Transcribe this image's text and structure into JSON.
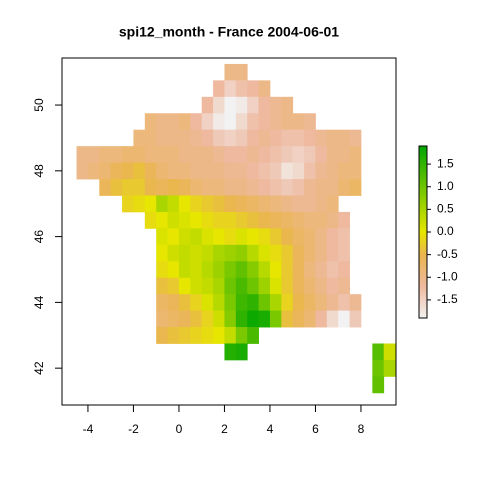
{
  "chart_data": {
    "type": "raster",
    "title": "spi12_month - France 2004-06-01",
    "x": [
      -4.75,
      -4.25,
      -3.75,
      -3.25,
      -2.75,
      -2.25,
      -1.75,
      -1.25,
      -0.75,
      -0.25,
      0.25,
      0.75,
      1.25,
      1.75,
      2.25,
      2.75,
      3.25,
      3.75,
      4.25,
      4.75,
      5.25,
      5.75,
      6.25,
      6.75,
      7.25,
      7.75,
      8.25,
      8.75,
      9.25
    ],
    "y": [
      51.0,
      50.5,
      50.0,
      49.5,
      49.0,
      48.5,
      48.0,
      47.5,
      47.0,
      46.5,
      46.0,
      45.5,
      45.0,
      44.5,
      44.0,
      43.5,
      43.0,
      42.5,
      42.0,
      41.5
    ],
    "values": [
      [
        null,
        null,
        null,
        null,
        null,
        null,
        null,
        null,
        null,
        null,
        null,
        null,
        null,
        null,
        -1.0,
        -1.0,
        null,
        null,
        null,
        null,
        null,
        null,
        null,
        null,
        null,
        null,
        null,
        null,
        null
      ],
      [
        null,
        null,
        null,
        null,
        null,
        null,
        null,
        null,
        null,
        null,
        null,
        null,
        null,
        -1.2,
        -1.5,
        -1.3,
        -1.2,
        -1.0,
        null,
        null,
        null,
        null,
        null,
        null,
        null,
        null,
        null,
        null,
        null
      ],
      [
        null,
        null,
        null,
        null,
        null,
        null,
        null,
        null,
        null,
        null,
        null,
        null,
        -1.2,
        -1.6,
        -1.9,
        -1.8,
        -1.5,
        -1.2,
        -1.1,
        -1.0,
        null,
        null,
        null,
        null,
        null,
        null,
        null,
        null,
        null
      ],
      [
        null,
        null,
        null,
        null,
        null,
        null,
        null,
        -0.9,
        -1.0,
        -1.0,
        -0.9,
        -1.2,
        -1.5,
        -1.8,
        -1.9,
        -1.6,
        -1.3,
        -1.2,
        -1.1,
        -1.0,
        -1.0,
        -1.1,
        null,
        null,
        null,
        null,
        null,
        null,
        null
      ],
      [
        null,
        null,
        null,
        null,
        null,
        null,
        -0.9,
        -0.9,
        -1.0,
        -1.0,
        -1.0,
        -1.1,
        -1.2,
        -1.4,
        -1.5,
        -1.4,
        -1.2,
        -1.1,
        -1.2,
        -1.3,
        -1.3,
        -1.2,
        -1.1,
        -1.0,
        -1.0,
        -1.1,
        null,
        null,
        null
      ],
      [
        null,
        -1.0,
        -1.0,
        -0.9,
        -0.9,
        -0.8,
        -0.8,
        -0.9,
        -0.9,
        -0.9,
        -1.0,
        -1.0,
        -1.0,
        -1.1,
        -1.2,
        -1.2,
        -1.1,
        -1.2,
        -1.3,
        -1.4,
        -1.5,
        -1.4,
        -1.2,
        -1.0,
        -1.0,
        -0.9,
        null,
        null,
        null
      ],
      [
        null,
        -1.0,
        -0.9,
        -0.8,
        -0.6,
        -0.5,
        -0.4,
        -0.6,
        -0.8,
        -0.9,
        -0.9,
        -1.0,
        -1.0,
        -1.0,
        -1.1,
        -1.1,
        -1.2,
        -1.3,
        -1.4,
        -1.7,
        -1.6,
        -1.3,
        -1.1,
        -1.0,
        -0.9,
        -0.9,
        null,
        null,
        null
      ],
      [
        null,
        null,
        null,
        -0.6,
        -0.4,
        -0.3,
        -0.3,
        -0.5,
        -0.6,
        -0.5,
        -0.6,
        -0.8,
        -0.9,
        -0.9,
        -1.0,
        -1.0,
        -1.1,
        -1.2,
        -1.3,
        -1.4,
        -1.3,
        -1.1,
        -1.0,
        -1.0,
        -0.8,
        -0.7,
        null,
        null,
        null
      ],
      [
        null,
        null,
        null,
        null,
        null,
        -0.2,
        -0.1,
        0.0,
        0.5,
        0.3,
        0.0,
        -0.2,
        -0.3,
        -0.4,
        -0.5,
        -0.6,
        -0.7,
        -0.8,
        -0.9,
        -1.0,
        -1.1,
        -1.1,
        -1.0,
        -0.9,
        null,
        null,
        null,
        null,
        null
      ],
      [
        null,
        null,
        null,
        null,
        null,
        null,
        null,
        -0.1,
        0.0,
        0.2,
        0.1,
        0.0,
        -0.1,
        -0.2,
        -0.2,
        -0.3,
        -0.4,
        -0.5,
        -0.6,
        -0.7,
        -0.8,
        -0.9,
        -0.9,
        -1.0,
        -1.2,
        null,
        null,
        null,
        null
      ],
      [
        null,
        null,
        null,
        null,
        null,
        null,
        null,
        null,
        0.1,
        0.0,
        0.2,
        0.3,
        0.1,
        0.0,
        -0.1,
        0.1,
        0.0,
        -0.1,
        -0.3,
        -0.5,
        -0.7,
        -0.8,
        -1.0,
        -1.2,
        -1.3,
        null,
        null,
        null,
        null
      ],
      [
        null,
        null,
        null,
        null,
        null,
        null,
        null,
        null,
        0.0,
        0.2,
        0.3,
        0.2,
        0.3,
        0.5,
        0.6,
        0.7,
        0.4,
        0.1,
        -0.1,
        -0.3,
        -0.6,
        -0.8,
        -1.0,
        -1.2,
        -1.3,
        null,
        null,
        null,
        null
      ],
      [
        null,
        null,
        null,
        null,
        null,
        null,
        null,
        null,
        -0.1,
        0.0,
        0.3,
        0.2,
        0.4,
        0.6,
        0.9,
        1.1,
        0.8,
        0.4,
        0.0,
        -0.3,
        -0.6,
        -0.9,
        -1.1,
        -1.3,
        -1.2,
        null,
        null,
        null,
        null
      ],
      [
        null,
        null,
        null,
        null,
        null,
        null,
        null,
        null,
        -0.4,
        -0.3,
        0.0,
        0.2,
        0.3,
        0.5,
        1.0,
        1.3,
        1.0,
        0.6,
        0.1,
        -0.3,
        -0.6,
        -0.8,
        -1.0,
        -1.2,
        -1.1,
        null,
        null,
        null,
        null
      ],
      [
        null,
        null,
        null,
        null,
        null,
        null,
        null,
        null,
        -0.7,
        -0.6,
        -0.4,
        -0.2,
        0.1,
        0.4,
        0.9,
        1.4,
        1.5,
        1.0,
        0.5,
        -0.2,
        -0.5,
        -0.7,
        -0.9,
        -1.1,
        -1.3,
        -1.1,
        null,
        null,
        null
      ],
      [
        null,
        null,
        null,
        null,
        null,
        null,
        null,
        null,
        -0.8,
        -0.7,
        -0.6,
        -0.4,
        -0.2,
        0.2,
        0.8,
        1.5,
        1.8,
        1.7,
        0.9,
        -0.4,
        -0.6,
        -0.8,
        -1.2,
        -1.6,
        -1.9,
        -1.4,
        null,
        null,
        null
      ],
      [
        null,
        null,
        null,
        null,
        null,
        null,
        null,
        null,
        -0.5,
        -0.4,
        -0.3,
        -0.2,
        -0.1,
        0.0,
        0.3,
        0.9,
        1.3,
        null,
        null,
        null,
        null,
        null,
        null,
        null,
        null,
        null,
        null,
        null,
        null
      ],
      [
        null,
        null,
        null,
        null,
        null,
        null,
        null,
        null,
        null,
        null,
        null,
        null,
        null,
        null,
        1.6,
        1.7,
        null,
        null,
        null,
        null,
        null,
        null,
        null,
        null,
        null,
        null,
        null,
        1.2,
        0.2
      ],
      [
        null,
        null,
        null,
        null,
        null,
        null,
        null,
        null,
        null,
        null,
        null,
        null,
        null,
        null,
        null,
        null,
        null,
        null,
        null,
        null,
        null,
        null,
        null,
        null,
        null,
        null,
        null,
        1.0,
        0.5
      ],
      [
        null,
        null,
        null,
        null,
        null,
        null,
        null,
        null,
        null,
        null,
        null,
        null,
        null,
        null,
        null,
        null,
        null,
        null,
        null,
        null,
        null,
        null,
        null,
        null,
        null,
        null,
        null,
        1.1,
        null
      ]
    ],
    "xlim": [
      -5.14,
      9.54
    ],
    "ylim": [
      40.88,
      51.43
    ],
    "xticks": [
      -4,
      -2,
      0,
      2,
      4,
      6,
      8
    ],
    "yticks": [
      42,
      44,
      46,
      48,
      50
    ],
    "colorbar": {
      "lim": [
        -1.9,
        1.9
      ],
      "ticks": [
        1.5,
        {
          "value": 1,
          "label": "1.0"
        },
        0.5,
        {
          "value": 0,
          "label": "0.0"
        },
        -0.5,
        {
          "value": -1,
          "label": "-1.0"
        },
        -1.5
      ]
    },
    "colorscale": [
      [
        -1.9,
        "#F2F2F2"
      ],
      [
        -1.2,
        "#EEB99F"
      ],
      [
        -0.5,
        "#EAB64E"
      ],
      [
        0,
        "#E6E600"
      ],
      [
        1.9,
        "#00A600"
      ]
    ]
  }
}
